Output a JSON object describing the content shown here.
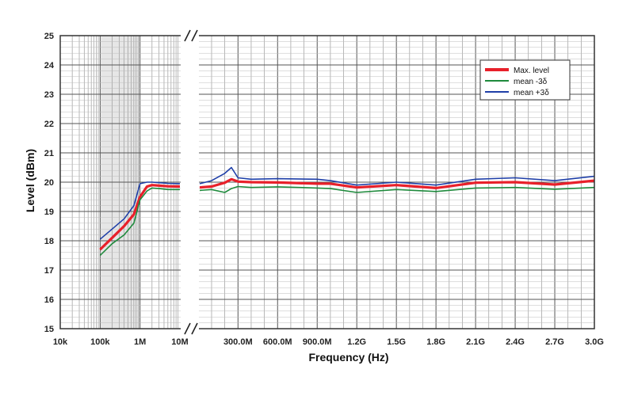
{
  "chart_data": {
    "type": "line",
    "xlabel": "Frequency (Hz)",
    "ylabel": "Level (dBm)",
    "ylim": [
      15,
      25
    ],
    "y_ticks": [
      "15",
      "16",
      "17",
      "18",
      "19",
      "20",
      "21",
      "22",
      "23",
      "24",
      "25"
    ],
    "x_axis": {
      "log_segment": {
        "scale": "log",
        "range": [
          "10k",
          "10M"
        ],
        "ticks": [
          "10k",
          "100k",
          "1M",
          "10M"
        ],
        "shaded_range": [
          "100k",
          "1M"
        ]
      },
      "linear_segment": {
        "scale": "linear",
        "range_hz": [
          10000000,
          3000000000
        ],
        "ticks": [
          "300.0M",
          "600.0M",
          "900.0M",
          "1.2G",
          "1.5G",
          "1.8G",
          "2.1G",
          "2.4G",
          "2.7G",
          "3.0G"
        ],
        "tick_values_hz": [
          300000000,
          600000000,
          900000000,
          1200000000,
          1500000000,
          1800000000,
          2100000000,
          2400000000,
          2700000000,
          3000000000
        ]
      },
      "axis_break": true
    },
    "grid": true,
    "legend_position": "top-right",
    "series": [
      {
        "name": "Max. level",
        "color": "#e8202a",
        "low_band": {
          "x_hz": [
            100000,
            200000,
            400000,
            700000,
            1000000,
            1500000,
            2000000,
            3000000,
            5000000,
            10000000
          ],
          "y": [
            17.7,
            18.1,
            18.5,
            18.9,
            19.5,
            19.85,
            19.9,
            19.88,
            19.86,
            19.85
          ]
        },
        "high_band": {
          "x_hz": [
            10000000,
            100000000,
            200000000,
            250000000,
            300000000,
            400000000,
            600000000,
            900000000,
            1000000000,
            1200000000,
            1500000000,
            1800000000,
            2100000000,
            2400000000,
            2700000000,
            3000000000
          ],
          "y": [
            19.82,
            19.85,
            19.98,
            20.1,
            20.02,
            20.0,
            19.99,
            19.95,
            19.95,
            19.82,
            19.9,
            19.8,
            19.98,
            20.0,
            19.92,
            20.05
          ]
        }
      },
      {
        "name": "mean -3δ",
        "color": "#1e8a3c",
        "low_band": {
          "x_hz": [
            100000,
            200000,
            400000,
            700000,
            1000000,
            1500000,
            2000000,
            3000000,
            5000000,
            10000000
          ],
          "y": [
            17.5,
            17.9,
            18.2,
            18.6,
            19.4,
            19.7,
            19.8,
            19.78,
            19.75,
            19.75
          ]
        },
        "high_band": {
          "x_hz": [
            10000000,
            100000000,
            200000000,
            250000000,
            300000000,
            400000000,
            600000000,
            900000000,
            1000000000,
            1200000000,
            1500000000,
            1800000000,
            2100000000,
            2400000000,
            2700000000,
            3000000000
          ],
          "y": [
            19.72,
            19.75,
            19.65,
            19.78,
            19.85,
            19.82,
            19.84,
            19.8,
            19.78,
            19.65,
            19.75,
            19.68,
            19.8,
            19.82,
            19.76,
            19.82
          ]
        }
      },
      {
        "name": "mean +3δ",
        "color": "#1f3fa8",
        "low_band": {
          "x_hz": [
            100000,
            200000,
            400000,
            700000,
            1000000,
            1500000,
            2000000,
            3000000,
            5000000,
            10000000
          ],
          "y": [
            18.05,
            18.4,
            18.75,
            19.2,
            19.95,
            20.0,
            20.0,
            19.98,
            19.96,
            19.95
          ]
        },
        "high_band": {
          "x_hz": [
            10000000,
            100000000,
            200000000,
            250000000,
            300000000,
            400000000,
            600000000,
            900000000,
            1000000000,
            1200000000,
            1500000000,
            1800000000,
            2100000000,
            2400000000,
            2700000000,
            3000000000
          ],
          "y": [
            19.95,
            20.05,
            20.3,
            20.5,
            20.15,
            20.1,
            20.12,
            20.1,
            20.05,
            19.9,
            20.0,
            19.9,
            20.1,
            20.15,
            20.05,
            20.2
          ]
        }
      }
    ]
  }
}
